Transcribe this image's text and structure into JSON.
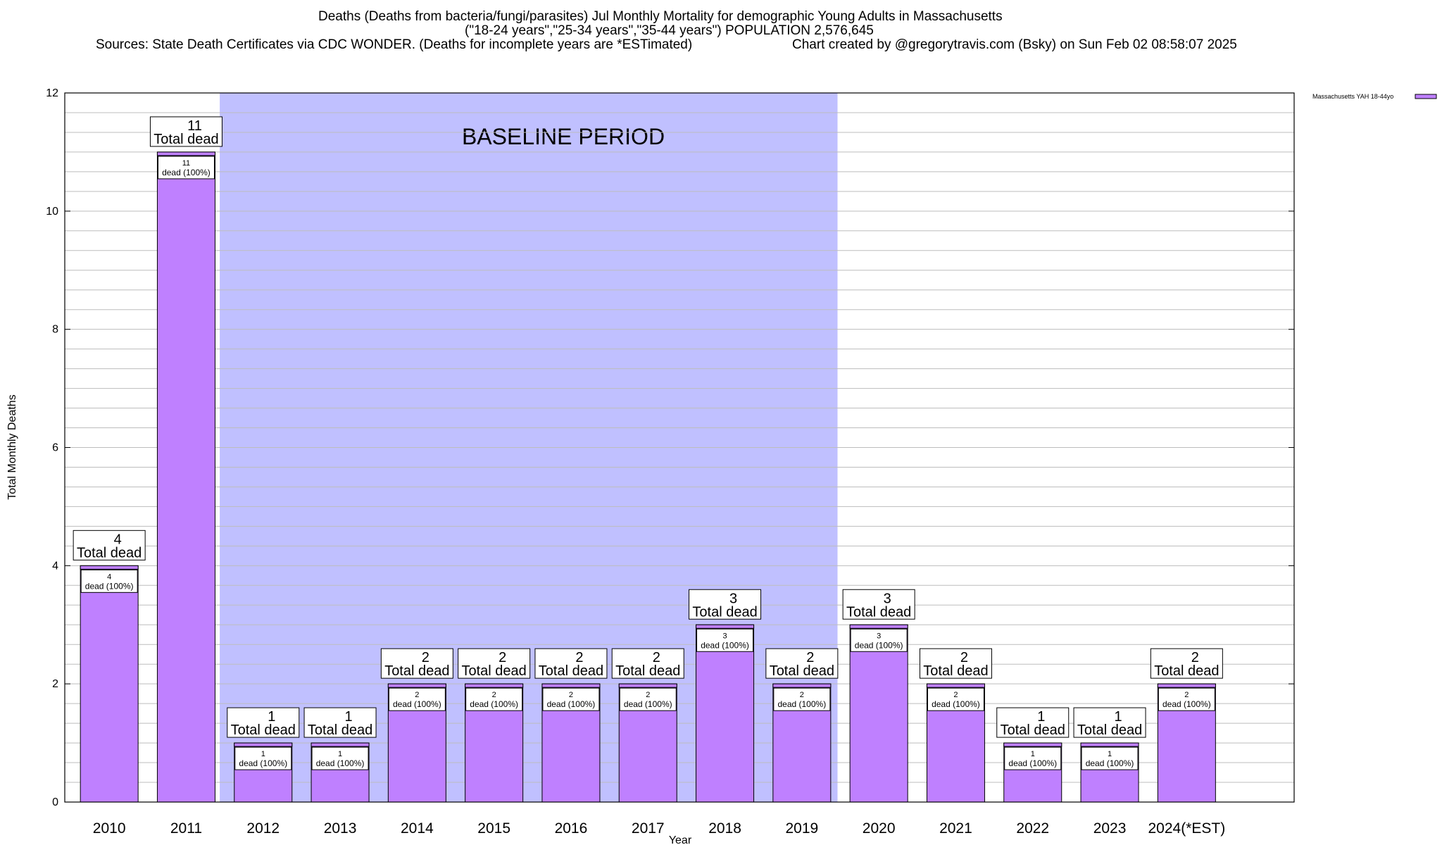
{
  "title": {
    "line1": "Deaths (Deaths from bacteria/fungi/parasites) Jul Monthly Mortality for demographic Young Adults in Massachusetts",
    "line2": "(\"18-24 years\",\"25-34 years\",\"35-44 years\") POPULATION 2,576,645",
    "line3": "Sources: State Death Certificates via CDC WONDER. (Deaths for incomplete years are *ESTimated)",
    "line4": "Chart created by @gregorytravis.com (Bsky) on Sun Feb 02 08:58:07 2025"
  },
  "chart_data": {
    "type": "bar",
    "ylabel": "Total Monthly Deaths",
    "xlabel": "Year",
    "ylim": [
      0,
      12
    ],
    "yticks": [
      0,
      2,
      4,
      6,
      8,
      10,
      12
    ],
    "grid": true,
    "legend_position": "top-right",
    "categories": [
      "2010",
      "2011",
      "2012",
      "2013",
      "2014",
      "2015",
      "2016",
      "2017",
      "2018",
      "2019",
      "2020",
      "2021",
      "2022",
      "2023",
      "2024(*EST)"
    ],
    "series": [
      {
        "name": "Massachusetts YAH 18-44yo",
        "color": "#bf80ff",
        "values": [
          4,
          11,
          1,
          1,
          2,
          2,
          2,
          2,
          3,
          2,
          3,
          2,
          1,
          1,
          2
        ]
      }
    ],
    "total_label_text": "Total dead",
    "bar_label_text": "dead (100%)",
    "baseline": {
      "label": "BASELINE PERIOD",
      "from": "2012",
      "to": "2019",
      "color": "#c0c0ff"
    }
  }
}
